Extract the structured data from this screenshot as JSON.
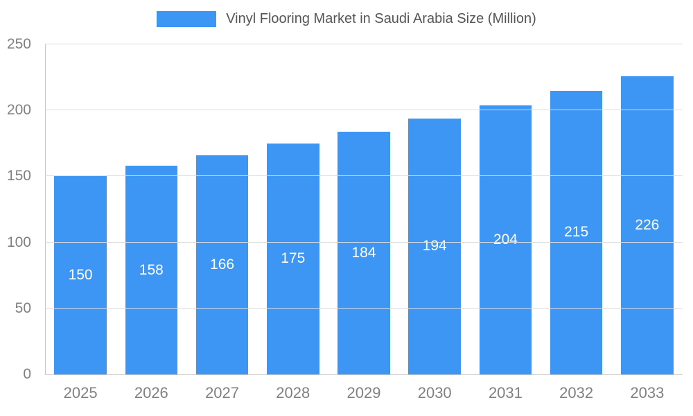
{
  "legend": {
    "label": "Vinyl Flooring Market in Saudi Arabia Size (Million)"
  },
  "colors": {
    "bar": "#3E96F4",
    "grid": "#dcdcdc",
    "axis": "#c8c8c8",
    "axis_text": "#808080",
    "title_text": "#555555",
    "value_text": "#ffffff"
  },
  "chart_data": {
    "type": "bar",
    "title": "Vinyl Flooring Market in Saudi Arabia Size (Million)",
    "categories": [
      "2025",
      "2026",
      "2027",
      "2028",
      "2029",
      "2030",
      "2031",
      "2032",
      "2033"
    ],
    "values": [
      150,
      158,
      166,
      175,
      184,
      194,
      204,
      215,
      226
    ],
    "xlabel": "",
    "ylabel": "",
    "ylim": [
      0,
      250
    ],
    "yticks": [
      0,
      50,
      100,
      150,
      200,
      250
    ],
    "grid": true,
    "legend_position": "top",
    "value_labels": "inside-middle"
  }
}
